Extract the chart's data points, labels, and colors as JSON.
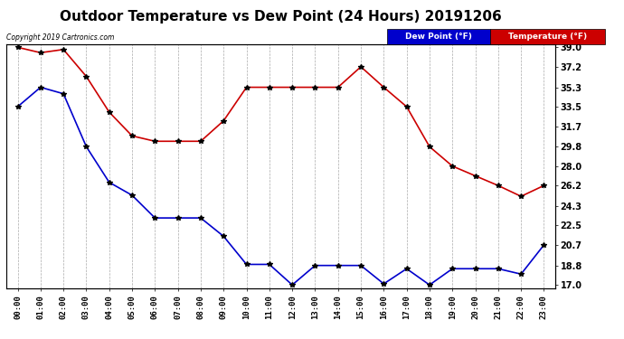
{
  "title": "Outdoor Temperature vs Dew Point (24 Hours) 20191206",
  "copyright_text": "Copyright 2019 Cartronics.com",
  "x_labels": [
    "00:00",
    "01:00",
    "02:00",
    "03:00",
    "04:00",
    "05:00",
    "06:00",
    "07:00",
    "08:00",
    "09:00",
    "10:00",
    "11:00",
    "12:00",
    "13:00",
    "14:00",
    "15:00",
    "16:00",
    "17:00",
    "18:00",
    "19:00",
    "20:00",
    "21:00",
    "22:00",
    "23:00"
  ],
  "temperature": [
    39.0,
    38.5,
    38.8,
    36.3,
    33.0,
    30.8,
    30.3,
    30.3,
    30.3,
    32.2,
    35.3,
    35.3,
    35.3,
    35.3,
    35.3,
    37.2,
    35.3,
    33.5,
    29.8,
    28.0,
    27.1,
    26.2,
    25.2,
    26.2
  ],
  "dew_point": [
    33.5,
    35.3,
    34.7,
    29.8,
    26.5,
    25.3,
    23.2,
    23.2,
    23.2,
    21.5,
    18.9,
    18.9,
    17.0,
    18.8,
    18.8,
    18.8,
    17.1,
    18.5,
    17.0,
    18.5,
    18.5,
    18.5,
    18.0,
    20.7
  ],
  "temp_color": "#cc0000",
  "dew_color": "#0000cc",
  "ylim_min": 17.0,
  "ylim_max": 39.0,
  "yticks": [
    17.0,
    18.8,
    20.7,
    22.5,
    24.3,
    26.2,
    28.0,
    29.8,
    31.7,
    33.5,
    35.3,
    37.2,
    39.0
  ],
  "bg_color": "#ffffff",
  "grid_color": "#aaaaaa",
  "legend_dew_bg": "#0000cc",
  "legend_temp_bg": "#cc0000",
  "title_fontsize": 11,
  "marker": "*",
  "marker_color": "#000000",
  "marker_size": 4
}
